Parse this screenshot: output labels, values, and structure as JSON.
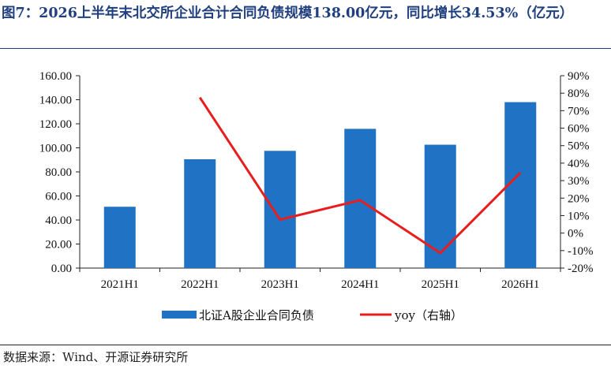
{
  "title": "图7：2026上半年末北交所企业合计合同负债规模138.00亿元，同比增长34.53%（亿元）",
  "source": "数据来源：Wind、开源证券研究所",
  "chart_data": {
    "type": "bar",
    "categories": [
      "2021H1",
      "2022H1",
      "2023H1",
      "2024H1",
      "2025H1",
      "2026H1"
    ],
    "series": [
      {
        "name": "北证A股企业合同负债",
        "type": "bar",
        "axis": "left",
        "color": "#1f72c4",
        "values": [
          51.0,
          90.5,
          97.5,
          115.8,
          102.6,
          138.0
        ]
      },
      {
        "name": "yoy（右轴）",
        "type": "line",
        "axis": "right",
        "color": "#e81e1e",
        "values": [
          null,
          77.5,
          7.7,
          18.8,
          -11.4,
          34.53
        ]
      }
    ],
    "ylim_left": [
      0,
      160
    ],
    "yticks_left": [
      "0.00",
      "20.00",
      "40.00",
      "60.00",
      "80.00",
      "100.00",
      "120.00",
      "140.00",
      "160.00"
    ],
    "ylim_right": [
      -20,
      90
    ],
    "yticks_right": [
      "-20%",
      "-10%",
      "0%",
      "10%",
      "20%",
      "30%",
      "40%",
      "50%",
      "60%",
      "70%",
      "80%",
      "90%"
    ],
    "legend_position": "bottom",
    "grid": false
  }
}
